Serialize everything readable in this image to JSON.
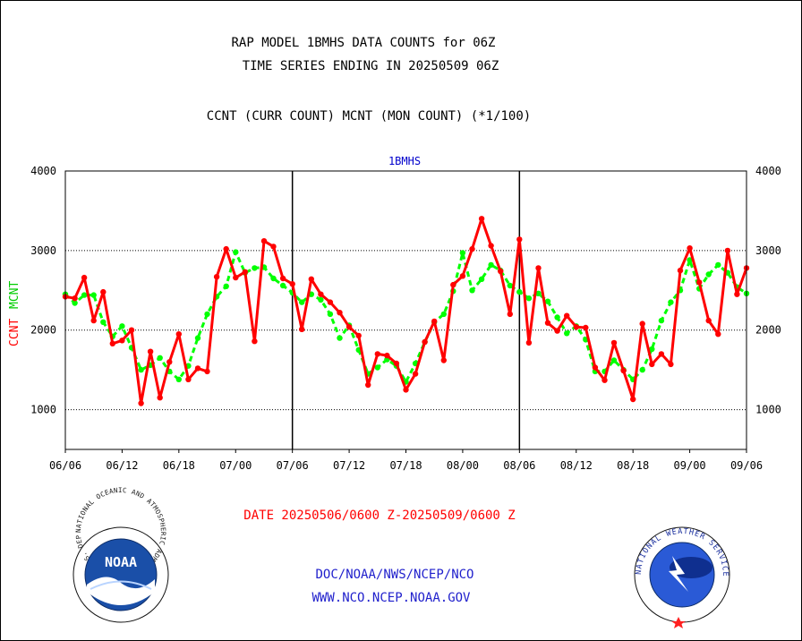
{
  "chart_data": {
    "type": "line",
    "title_lines": [
      "RAP MODEL 1BMHS DATA COUNTS for 06Z",
      "TIME SERIES ENDING IN 20250509 06Z"
    ],
    "subtitle": "CCNT (CURR COUNT) MCNT (MON COUNT) (*1/100)",
    "panel_label": "1BMHS",
    "ylabel_left_ccnt": "CCNT",
    "ylabel_left_mcnt": "MCNT",
    "ylim": [
      500,
      4000
    ],
    "y_ticks": [
      "1000",
      "2000",
      "3000",
      "4000"
    ],
    "x_ticks": [
      "06/06",
      "06/12",
      "06/18",
      "07/00",
      "07/06",
      "07/12",
      "07/18",
      "08/00",
      "08/06",
      "08/12",
      "08/18",
      "09/00",
      "09/06"
    ],
    "grid": true,
    "colors": {
      "ccnt": "#ff0000",
      "mcnt": "#00ff00",
      "frame": "#000000",
      "grid": "#000000",
      "label": "#0000cc"
    },
    "series": [
      {
        "name": "CCNT",
        "values": [
          2420,
          2400,
          2660,
          2120,
          2480,
          1830,
          1870,
          2000,
          1080,
          1730,
          1150,
          1600,
          1950,
          1380,
          1520,
          1480,
          2670,
          3020,
          2660,
          2730,
          1860,
          3120,
          3050,
          2650,
          2580,
          2010,
          2640,
          2450,
          2350,
          2220,
          2040,
          1930,
          1310,
          1700,
          1680,
          1580,
          1250,
          1450,
          1850,
          2110,
          1620,
          2570,
          2680,
          3020,
          3400,
          3060,
          2740,
          2200,
          3140,
          1840,
          2780,
          2090,
          1990,
          2180,
          2040,
          2030,
          1530,
          1370,
          1840,
          1490,
          1130,
          2080,
          1570,
          1700,
          1570,
          2750,
          3030,
          2600,
          2120,
          1950,
          3000,
          2450,
          2780
        ]
      },
      {
        "name": "MCNT",
        "values": [
          2450,
          2340,
          2440,
          2440,
          2100,
          1920,
          2050,
          1780,
          1500,
          1560,
          1650,
          1480,
          1380,
          1550,
          1900,
          2200,
          2420,
          2550,
          2980,
          2720,
          2780,
          2790,
          2650,
          2560,
          2470,
          2350,
          2450,
          2380,
          2200,
          1900,
          2060,
          1750,
          1450,
          1530,
          1630,
          1550,
          1350,
          1580,
          1850,
          2100,
          2200,
          2490,
          2970,
          2500,
          2640,
          2820,
          2750,
          2560,
          2480,
          2400,
          2460,
          2360,
          2160,
          1960,
          2050,
          1880,
          1480,
          1480,
          1620,
          1500,
          1380,
          1500,
          1760,
          2120,
          2350,
          2500,
          2880,
          2520,
          2700,
          2820,
          2720,
          2540,
          2460
        ]
      }
    ]
  },
  "footer": {
    "date_range": "DATE 20250506/0600 Z-20250509/0600 Z",
    "org_path": "DOC/NOAA/NWS/NCEP/NCO",
    "website": "WWW.NCO.NCEP.NOAA.GOV"
  },
  "logos": {
    "noaa_wordmark": "NOAA",
    "noaa_ring_text": "NATIONAL OCEANIC AND ATMOSPHERIC ADMINISTRATION · U.S. DEPARTMENT OF COMMERCE ·",
    "nws_ring_text": "NATIONAL WEATHER SERVICE"
  }
}
